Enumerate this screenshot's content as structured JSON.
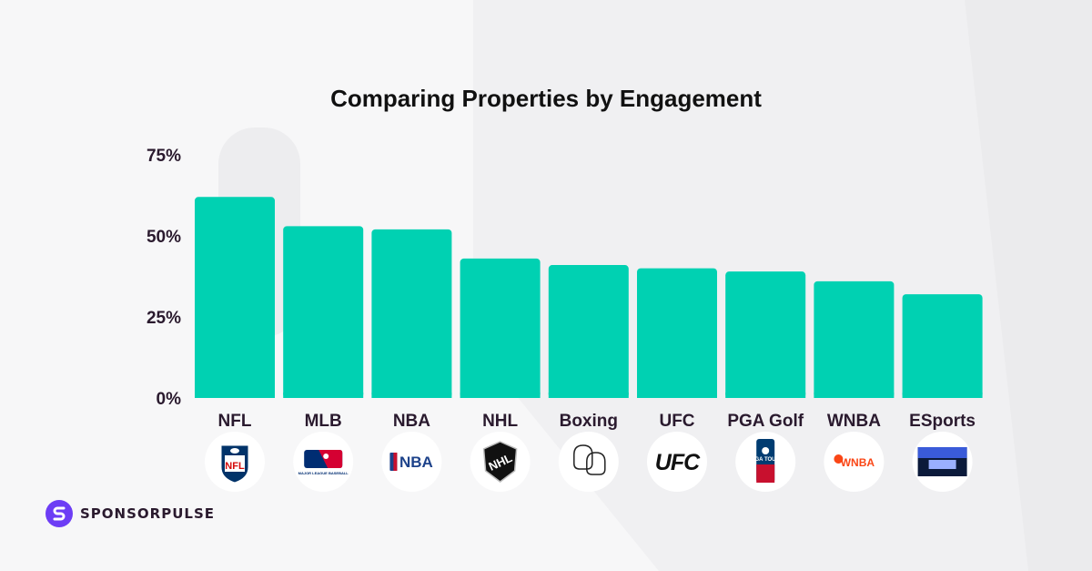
{
  "chart_data": {
    "type": "bar",
    "title": "Comparing Properties by Engagement",
    "categories": [
      "NFL",
      "MLB",
      "NBA",
      "NHL",
      "Boxing",
      "UFC",
      "PGA Golf",
      "WNBA",
      "ESports"
    ],
    "values": [
      62,
      53,
      52,
      43,
      41,
      40,
      39,
      36,
      32
    ],
    "ylim": [
      0,
      75
    ],
    "yticks": [
      "0%",
      "25%",
      "50%",
      "75%"
    ],
    "ytick_values": [
      0,
      25,
      50,
      75
    ],
    "xlabel": "",
    "ylabel": "",
    "bar_color": "#00d1b2",
    "grid": false,
    "logos": [
      {
        "icon": "nfl-logo-icon",
        "text": "NFL"
      },
      {
        "icon": "mlb-logo-icon",
        "text": "MAJOR LEAGUE BASEBALL"
      },
      {
        "icon": "nba-logo-icon",
        "text": "NBA"
      },
      {
        "icon": "nhl-logo-icon",
        "text": "NHL"
      },
      {
        "icon": "boxing-gloves-icon",
        "text": ""
      },
      {
        "icon": "ufc-logo-icon",
        "text": "UFC"
      },
      {
        "icon": "pga-tour-logo-icon",
        "text": "PGA TOUR"
      },
      {
        "icon": "wnba-logo-icon",
        "text": "WNBA"
      },
      {
        "icon": "esports-arena-icon",
        "text": ""
      }
    ]
  },
  "brand": {
    "name": "SPONSORPULSE",
    "color": "#6d3df5"
  },
  "colors": {
    "text": "#2a1a2e",
    "title": "#111111",
    "logo_bg": "#ffffff"
  }
}
